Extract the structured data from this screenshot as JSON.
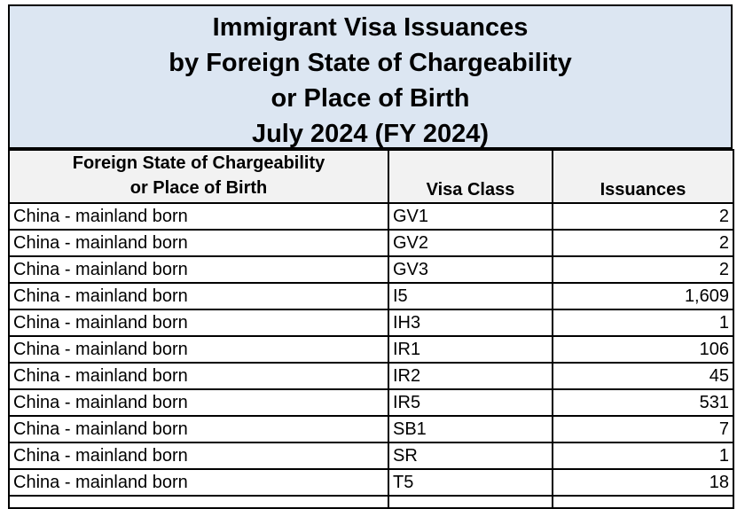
{
  "title": {
    "line1": "Immigrant Visa Issuances",
    "line2": "by Foreign State of Chargeability",
    "line3": "or Place of Birth",
    "line4": "July 2024 (FY 2024)"
  },
  "columns": {
    "state_line1": "Foreign State of Chargeability",
    "state_line2": "or Place of Birth",
    "visa_class": "Visa Class",
    "issuances": "Issuances"
  },
  "rows": [
    {
      "state": "China - mainland born",
      "visa_class": "GV1",
      "issuances": "2"
    },
    {
      "state": "China - mainland born",
      "visa_class": "GV2",
      "issuances": "2"
    },
    {
      "state": "China - mainland born",
      "visa_class": "GV3",
      "issuances": "2"
    },
    {
      "state": "China - mainland born",
      "visa_class": "I5",
      "issuances": "1,609"
    },
    {
      "state": "China - mainland born",
      "visa_class": "IH3",
      "issuances": "1"
    },
    {
      "state": "China - mainland born",
      "visa_class": "IR1",
      "issuances": "106"
    },
    {
      "state": "China - mainland born",
      "visa_class": "IR2",
      "issuances": "45"
    },
    {
      "state": "China - mainland born",
      "visa_class": "IR5",
      "issuances": "531"
    },
    {
      "state": "China - mainland born",
      "visa_class": "SB1",
      "issuances": "7"
    },
    {
      "state": "China - mainland born",
      "visa_class": "SR",
      "issuances": "1"
    },
    {
      "state": "China - mainland born",
      "visa_class": "T5",
      "issuances": "18"
    }
  ]
}
